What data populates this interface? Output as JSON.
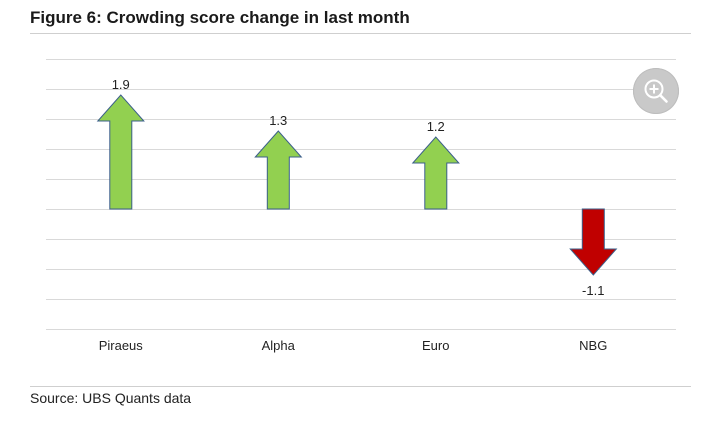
{
  "figure": {
    "title": "Figure 6: Crowding score change in last month",
    "source": "Source: UBS Quants data"
  },
  "colors": {
    "positive": "#92d050",
    "negative": "#c00000",
    "arrow_outline": "#3b5f8a",
    "gridline": "#d9d9d9"
  },
  "zoom_button": {
    "icon": "zoom-in-icon"
  },
  "chart_data": {
    "type": "bar",
    "mark": "arrow",
    "categories": [
      "Piraeus",
      "Alpha",
      "Euro",
      "NBG"
    ],
    "values": [
      1.9,
      1.3,
      1.2,
      -1.1
    ],
    "data_labels": [
      "1.9",
      "1.3",
      "1.2",
      "-1.1"
    ],
    "ylim": [
      -2.0,
      2.5
    ],
    "ytick_step": 0.5,
    "grid": true,
    "legend": "none"
  }
}
